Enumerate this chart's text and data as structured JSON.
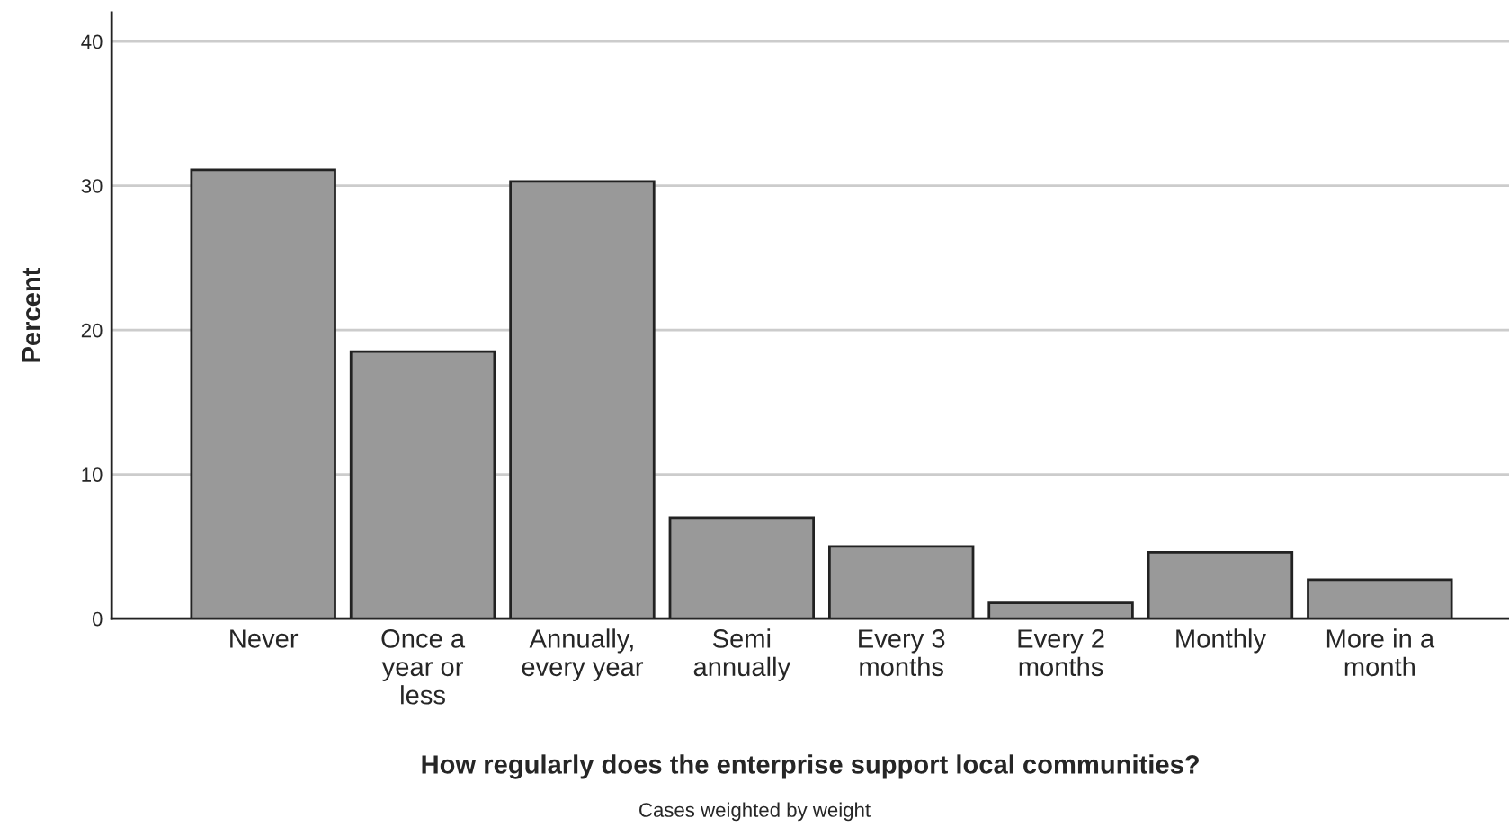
{
  "chart_data": {
    "type": "bar",
    "categories": [
      "Never",
      "Once a\nyear or\nless",
      "Annually,\nevery year",
      "Semi\nannually",
      "Every 3\nmonths",
      "Every 2\nmonths",
      "Monthly",
      "More in a\nmonth"
    ],
    "values": [
      31.1,
      18.5,
      30.3,
      7.0,
      5.0,
      1.1,
      4.6,
      2.7
    ],
    "color": "#999999",
    "xlabel": "How regularly does the enterprise support local communities?",
    "ylabel": "Percent",
    "ylim": [
      0,
      42
    ],
    "yticks": [
      0,
      10,
      20,
      30,
      40
    ],
    "grid": "y",
    "annotations": [
      "Cases weighted by weight"
    ]
  }
}
